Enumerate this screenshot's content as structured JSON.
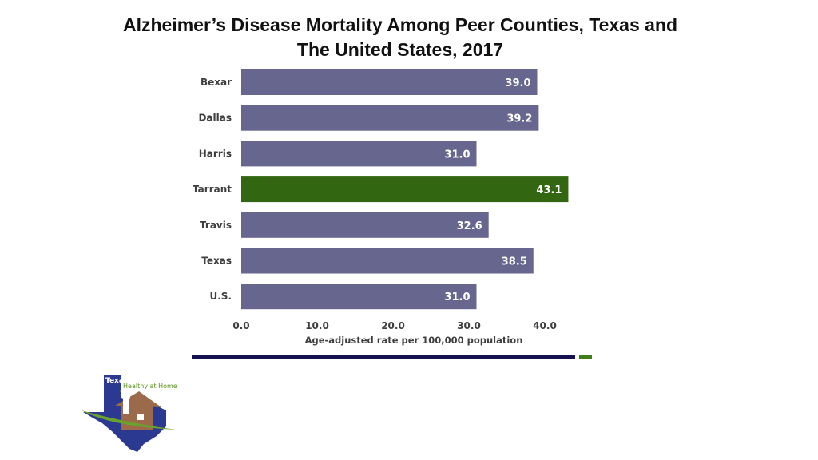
{
  "title_line1": "Alzheimer’s Disease Mortality Among Peer Counties, Texas and",
  "title_line2": "The United States, 2017",
  "colors": {
    "bar": "#67668f",
    "highlight": "#336611",
    "rule_navy": "#14134f",
    "rule_green": "#3f7f1a"
  },
  "chart_data": {
    "type": "bar",
    "orientation": "horizontal",
    "categories": [
      "Bexar",
      "Dallas",
      "Harris",
      "Tarrant",
      "Travis",
      "Texas",
      "U.S."
    ],
    "values": [
      39.0,
      39.2,
      31.0,
      43.1,
      32.6,
      38.5,
      31.0
    ],
    "value_labels": [
      "39.0",
      "39.2",
      "31.0",
      "43.1",
      "32.6",
      "38.5",
      "31.0"
    ],
    "highlight_category": "Tarrant",
    "xlabel": "Age-adjusted rate per 100,000 population",
    "xlim": [
      0,
      45
    ],
    "xticks": [
      0,
      10,
      20,
      30,
      40
    ],
    "xtick_labels": [
      "0.0",
      "10.0",
      "20.0",
      "30.0",
      "40.0"
    ],
    "grid": false,
    "legend": false
  },
  "logo": {
    "name": "texas-healthy-at-home-logo",
    "texas": "Texas",
    "tagline": "Healthy at Home"
  }
}
